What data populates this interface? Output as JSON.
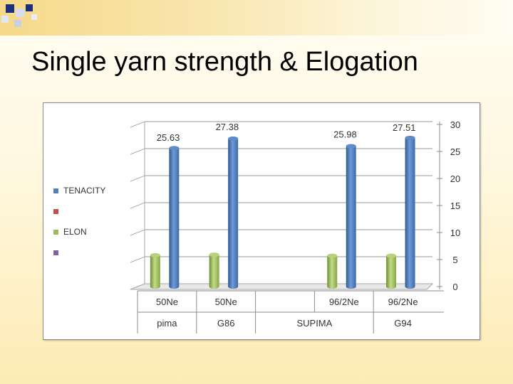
{
  "slide": {
    "title": "Single yarn strength & Elogation"
  },
  "chart_data": {
    "type": "bar",
    "title": "",
    "categories": [
      "pima 50Ne",
      "G86 50Ne",
      "SUPIMA",
      "SUPIMA 96/2Ne",
      "G94 96/2Ne"
    ],
    "x_labels_row1": [
      "50Ne",
      "50Ne",
      "",
      "96/2Ne",
      "96/2Ne"
    ],
    "x_labels_row2": [
      {
        "label": "pima",
        "span": 1
      },
      {
        "label": "G86",
        "span": 1
      },
      {
        "label": "SUPIMA",
        "span": 2
      },
      {
        "label": "G94",
        "span": 1
      }
    ],
    "series": [
      {
        "name": "TENACITY",
        "color": "#4f81bd",
        "values": [
          25.63,
          27.38,
          null,
          25.98,
          27.51
        ]
      },
      {
        "name": "",
        "color": "#c0504d",
        "values": [
          null,
          null,
          null,
          null,
          null
        ]
      },
      {
        "name": "ELON",
        "color": "#9bbb59",
        "values": [
          5.8,
          5.9,
          null,
          5.7,
          5.7
        ]
      },
      {
        "name": "",
        "color": "#8064a2",
        "values": [
          null,
          null,
          null,
          null,
          null
        ]
      }
    ],
    "y_axis": {
      "min": 0,
      "max": 30,
      "step": 5,
      "position": "right",
      "ticks": [
        "0",
        "5",
        "10",
        "15",
        "20",
        "25",
        "30"
      ]
    },
    "data_labels": [
      "25.63",
      "27.38",
      "",
      "25.98",
      "27.51"
    ],
    "grid": true,
    "legend_position": "left",
    "style": "3d-cylinder"
  }
}
